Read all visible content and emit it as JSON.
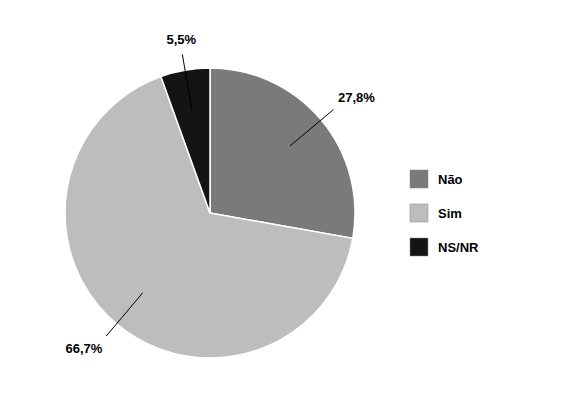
{
  "chart_data": {
    "type": "pie",
    "categories": [
      "Não",
      "Sim",
      "NS/NR"
    ],
    "values": [
      27.8,
      66.7,
      5.5
    ],
    "value_labels": [
      "27,8%",
      "66,7%",
      "5,5%"
    ],
    "colors": [
      "#7a7a7a",
      "#bdbdbd",
      "#141414"
    ],
    "data_labels": true,
    "legend": "right"
  }
}
